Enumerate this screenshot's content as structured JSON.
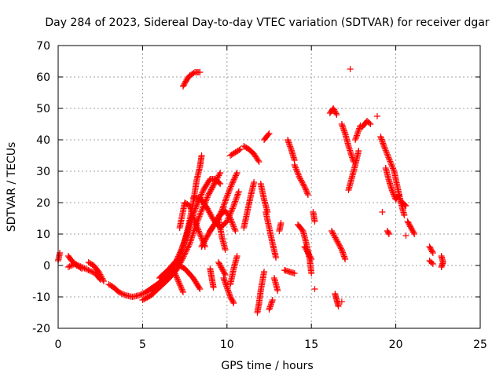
{
  "chart_data": {
    "type": "scatter",
    "title": "Day 284 of 2023, Sidereal Day-to-day VTEC variation (SDTVAR) for receiver dgar",
    "xlabel": "GPS time / hours",
    "ylabel": "SDTVAR / TECUs",
    "xlim": [
      0,
      25
    ],
    "ylim": [
      -20,
      70
    ],
    "xticks": [
      0,
      5,
      10,
      15,
      20,
      25
    ],
    "yticks": [
      -20,
      -10,
      0,
      10,
      20,
      30,
      40,
      50,
      60,
      70
    ],
    "xtick_labels": [
      "0",
      "5",
      "10",
      "15",
      "20",
      "25"
    ],
    "ytick_labels": [
      "-20",
      "-10",
      "0",
      "10",
      "20",
      "30",
      "40",
      "50",
      "60",
      "70"
    ],
    "grid": true,
    "marker": "+",
    "color": "#ff0000",
    "tracks": [
      {
        "points": [
          [
            0.0,
            1.5
          ],
          [
            0.1,
            4.0
          ]
        ]
      },
      {
        "points": [
          [
            0.6,
            3.0
          ],
          [
            0.8,
            1.5
          ],
          [
            1.1,
            0.0
          ],
          [
            1.4,
            -1.0
          ]
        ]
      },
      {
        "points": [
          [
            0.6,
            -0.5
          ],
          [
            1.0,
            0.5
          ],
          [
            1.4,
            -0.5
          ],
          [
            1.8,
            -1.5
          ],
          [
            2.2,
            -2.5
          ],
          [
            2.5,
            -4.5
          ]
        ]
      },
      {
        "points": [
          [
            1.8,
            1.0
          ],
          [
            2.1,
            0.0
          ],
          [
            2.4,
            -2.0
          ],
          [
            2.7,
            -5.0
          ]
        ]
      },
      {
        "points": [
          [
            3.0,
            -6.0
          ],
          [
            3.3,
            -7.0
          ],
          [
            3.6,
            -8.5
          ],
          [
            4.0,
            -9.5
          ],
          [
            4.4,
            -10.0
          ],
          [
            4.8,
            -9.5
          ],
          [
            5.2,
            -8.5
          ],
          [
            5.6,
            -7.0
          ],
          [
            6.0,
            -5.5
          ],
          [
            6.4,
            -3.5
          ]
        ]
      },
      {
        "points": [
          [
            5.0,
            -11.0
          ],
          [
            5.5,
            -9.5
          ],
          [
            6.0,
            -7.0
          ],
          [
            6.5,
            -4.5
          ],
          [
            7.0,
            -1.5
          ],
          [
            7.4,
            2.5
          ],
          [
            7.8,
            7.0
          ],
          [
            8.1,
            12.0
          ],
          [
            8.5,
            17.5
          ],
          [
            8.9,
            22.5
          ],
          [
            9.3,
            26.5
          ],
          [
            9.6,
            29.5
          ]
        ]
      },
      {
        "points": [
          [
            5.5,
            -8.0
          ],
          [
            6.0,
            -5.5
          ],
          [
            6.5,
            -3.0
          ],
          [
            7.0,
            1.0
          ],
          [
            7.4,
            6.0
          ],
          [
            7.7,
            12.0
          ],
          [
            8.0,
            20.0
          ],
          [
            8.2,
            27.0
          ],
          [
            8.4,
            31.5
          ],
          [
            8.5,
            35.0
          ]
        ]
      },
      {
        "points": [
          [
            6.0,
            -4.0
          ],
          [
            6.5,
            -1.5
          ],
          [
            7.0,
            1.5
          ],
          [
            7.3,
            5.0
          ],
          [
            7.6,
            9.5
          ],
          [
            7.9,
            15.0
          ],
          [
            8.2,
            19.0
          ],
          [
            8.6,
            24.0
          ],
          [
            9.0,
            27.5
          ],
          [
            9.3,
            27.5
          ],
          [
            9.6,
            26.0
          ]
        ]
      },
      {
        "points": [
          [
            7.2,
            12.0
          ],
          [
            7.5,
            20.0
          ],
          [
            7.8,
            19.0
          ],
          [
            8.1,
            14.0
          ],
          [
            8.4,
            10.0
          ],
          [
            8.7,
            6.0
          ]
        ]
      },
      {
        "points": [
          [
            6.8,
            -1.0
          ],
          [
            7.0,
            -3.5
          ],
          [
            7.2,
            -6.0
          ],
          [
            7.4,
            -8.5
          ]
        ]
      },
      {
        "points": [
          [
            7.0,
            0.5
          ],
          [
            7.5,
            -1.0
          ],
          [
            8.0,
            -4.0
          ],
          [
            8.4,
            -7.5
          ]
        ]
      },
      {
        "points": [
          [
            8.0,
            21.5
          ],
          [
            8.4,
            21.5
          ],
          [
            8.8,
            18.5
          ],
          [
            9.2,
            14.5
          ],
          [
            9.6,
            12.0
          ],
          [
            10.0,
            14.0
          ],
          [
            10.4,
            19.0
          ],
          [
            10.7,
            23.5
          ]
        ]
      },
      {
        "points": [
          [
            8.5,
            6.0
          ],
          [
            8.9,
            10.0
          ],
          [
            9.3,
            13.5
          ],
          [
            9.7,
            17.5
          ],
          [
            10.0,
            22.0
          ],
          [
            10.3,
            26.0
          ],
          [
            10.6,
            29.5
          ]
        ]
      },
      {
        "points": [
          [
            9.0,
            -1.0
          ],
          [
            9.1,
            -4.0
          ],
          [
            9.2,
            -7.0
          ]
        ]
      },
      {
        "points": [
          [
            9.0,
            11.0
          ],
          [
            9.3,
            13.5
          ],
          [
            9.6,
            16.0
          ],
          [
            9.9,
            17.5
          ],
          [
            10.2,
            15.0
          ],
          [
            10.5,
            11.0
          ]
        ]
      },
      {
        "points": [
          [
            9.5,
            1.0
          ],
          [
            9.7,
            -1.0
          ],
          [
            9.9,
            -3.0
          ]
        ]
      },
      {
        "points": [
          [
            7.4,
            57.0
          ],
          [
            7.6,
            59.0
          ],
          [
            7.8,
            60.5
          ],
          [
            8.1,
            61.5
          ],
          [
            8.4,
            61.5
          ]
        ]
      },
      {
        "points": [
          [
            9.8,
            -4.0
          ],
          [
            10.0,
            -7.0
          ],
          [
            10.2,
            -10.0
          ],
          [
            10.4,
            -12.0
          ]
        ]
      },
      {
        "points": [
          [
            10.2,
            -6.0
          ],
          [
            10.4,
            -1.0
          ],
          [
            10.6,
            3.0
          ]
        ]
      },
      {
        "points": [
          [
            9.5,
            15.0
          ],
          [
            9.7,
            9.0
          ],
          [
            9.9,
            5.0
          ]
        ]
      },
      {
        "points": [
          [
            10.2,
            35.0
          ],
          [
            10.5,
            36.0
          ],
          [
            10.8,
            37.0
          ]
        ]
      },
      {
        "points": [
          [
            11.0,
            38.0
          ],
          [
            11.3,
            37.0
          ],
          [
            11.6,
            35.5
          ],
          [
            11.9,
            33.0
          ]
        ]
      },
      {
        "points": [
          [
            11.0,
            12.0
          ],
          [
            11.2,
            17.0
          ],
          [
            11.4,
            22.0
          ],
          [
            11.6,
            26.5
          ]
        ]
      },
      {
        "points": [
          [
            11.8,
            -15.0
          ],
          [
            11.9,
            -12.0
          ],
          [
            12.0,
            -8.0
          ],
          [
            12.2,
            -2.0
          ]
        ]
      },
      {
        "points": [
          [
            12.0,
            26.0
          ],
          [
            12.2,
            21.0
          ],
          [
            12.4,
            17.0
          ]
        ]
      },
      {
        "points": [
          [
            12.2,
            40.0
          ],
          [
            12.5,
            42.0
          ]
        ]
      },
      {
        "points": [
          [
            12.3,
            17.0
          ],
          [
            12.5,
            12.0
          ],
          [
            12.7,
            7.0
          ],
          [
            12.9,
            2.5
          ]
        ]
      },
      {
        "points": [
          [
            12.5,
            -14.0
          ],
          [
            12.7,
            -11.0
          ]
        ]
      },
      {
        "points": [
          [
            12.8,
            -4.0
          ],
          [
            13.0,
            -8.0
          ]
        ]
      },
      {
        "points": [
          [
            13.2,
            13.5
          ],
          [
            13.1,
            11.0
          ]
        ]
      },
      {
        "points": [
          [
            13.4,
            -1.5
          ],
          [
            13.7,
            -2.0
          ],
          [
            14.0,
            -2.5
          ]
        ]
      },
      {
        "points": [
          [
            13.6,
            40.0
          ],
          [
            13.8,
            37.0
          ],
          [
            14.0,
            33.5
          ]
        ]
      },
      {
        "points": [
          [
            14.0,
            32.0
          ],
          [
            14.3,
            28.0
          ],
          [
            14.6,
            25.0
          ],
          [
            14.8,
            22.5
          ]
        ]
      },
      {
        "points": [
          [
            14.2,
            13.0
          ],
          [
            14.5,
            11.0
          ],
          [
            14.7,
            7.0
          ],
          [
            14.9,
            2.0
          ],
          [
            15.0,
            -2.5
          ]
        ]
      },
      {
        "points": [
          [
            14.6,
            6.0
          ],
          [
            14.8,
            4.0
          ],
          [
            15.0,
            2.0
          ]
        ]
      },
      {
        "points": [
          [
            15.1,
            17.0
          ],
          [
            15.2,
            14.0
          ]
        ]
      },
      {
        "points": [
          [
            15.2,
            -7.5
          ]
        ]
      },
      {
        "points": [
          [
            16.1,
            48.5
          ],
          [
            16.3,
            50.0
          ],
          [
            16.5,
            48.0
          ]
        ]
      },
      {
        "points": [
          [
            16.2,
            11.0
          ],
          [
            16.5,
            8.0
          ],
          [
            16.8,
            5.0
          ],
          [
            17.0,
            2.0
          ]
        ]
      },
      {
        "points": [
          [
            16.4,
            -9.0
          ],
          [
            16.5,
            -11.0
          ],
          [
            16.6,
            -13.0
          ]
        ]
      },
      {
        "points": [
          [
            16.8,
            45.0
          ],
          [
            17.0,
            42.0
          ],
          [
            17.2,
            38.0
          ],
          [
            17.5,
            33.0
          ]
        ]
      },
      {
        "points": [
          [
            16.8,
            -11.5
          ]
        ]
      },
      {
        "points": [
          [
            17.2,
            24.0
          ],
          [
            17.4,
            28.0
          ],
          [
            17.6,
            32.0
          ],
          [
            17.8,
            36.5
          ]
        ]
      },
      {
        "points": [
          [
            17.3,
            62.5
          ]
        ]
      },
      {
        "points": [
          [
            17.6,
            40.0
          ],
          [
            17.9,
            44.5
          ]
        ]
      },
      {
        "points": [
          [
            18.0,
            44.0
          ],
          [
            18.3,
            46.0
          ],
          [
            18.5,
            45.0
          ]
        ]
      },
      {
        "points": [
          [
            18.9,
            47.5
          ]
        ]
      },
      {
        "points": [
          [
            19.1,
            41.0
          ],
          [
            19.3,
            38.0
          ],
          [
            19.6,
            34.0
          ],
          [
            19.9,
            30.0
          ],
          [
            20.1,
            25.0
          ],
          [
            20.3,
            20.0
          ],
          [
            20.5,
            16.0
          ]
        ]
      },
      {
        "points": [
          [
            19.2,
            17.0
          ]
        ]
      },
      {
        "points": [
          [
            19.4,
            31.0
          ],
          [
            19.6,
            27.0
          ],
          [
            19.8,
            23.5
          ],
          [
            20.0,
            21.0
          ],
          [
            20.2,
            22.5
          ]
        ]
      },
      {
        "points": [
          [
            19.5,
            11.0
          ],
          [
            19.6,
            10.0
          ]
        ]
      },
      {
        "points": [
          [
            20.3,
            20.5
          ],
          [
            20.6,
            19.0
          ]
        ]
      },
      {
        "points": [
          [
            20.6,
            9.5
          ]
        ]
      },
      {
        "points": [
          [
            20.7,
            14.0
          ],
          [
            20.9,
            12.0
          ],
          [
            21.1,
            10.0
          ]
        ]
      },
      {
        "points": [
          [
            22.0,
            6.0
          ],
          [
            22.2,
            4.0
          ]
        ]
      },
      {
        "points": [
          [
            22.0,
            1.5
          ],
          [
            22.2,
            0.5
          ]
        ]
      },
      {
        "points": [
          [
            22.7,
            3.0
          ],
          [
            22.8,
            1.0
          ],
          [
            22.7,
            -0.5
          ]
        ]
      }
    ]
  }
}
